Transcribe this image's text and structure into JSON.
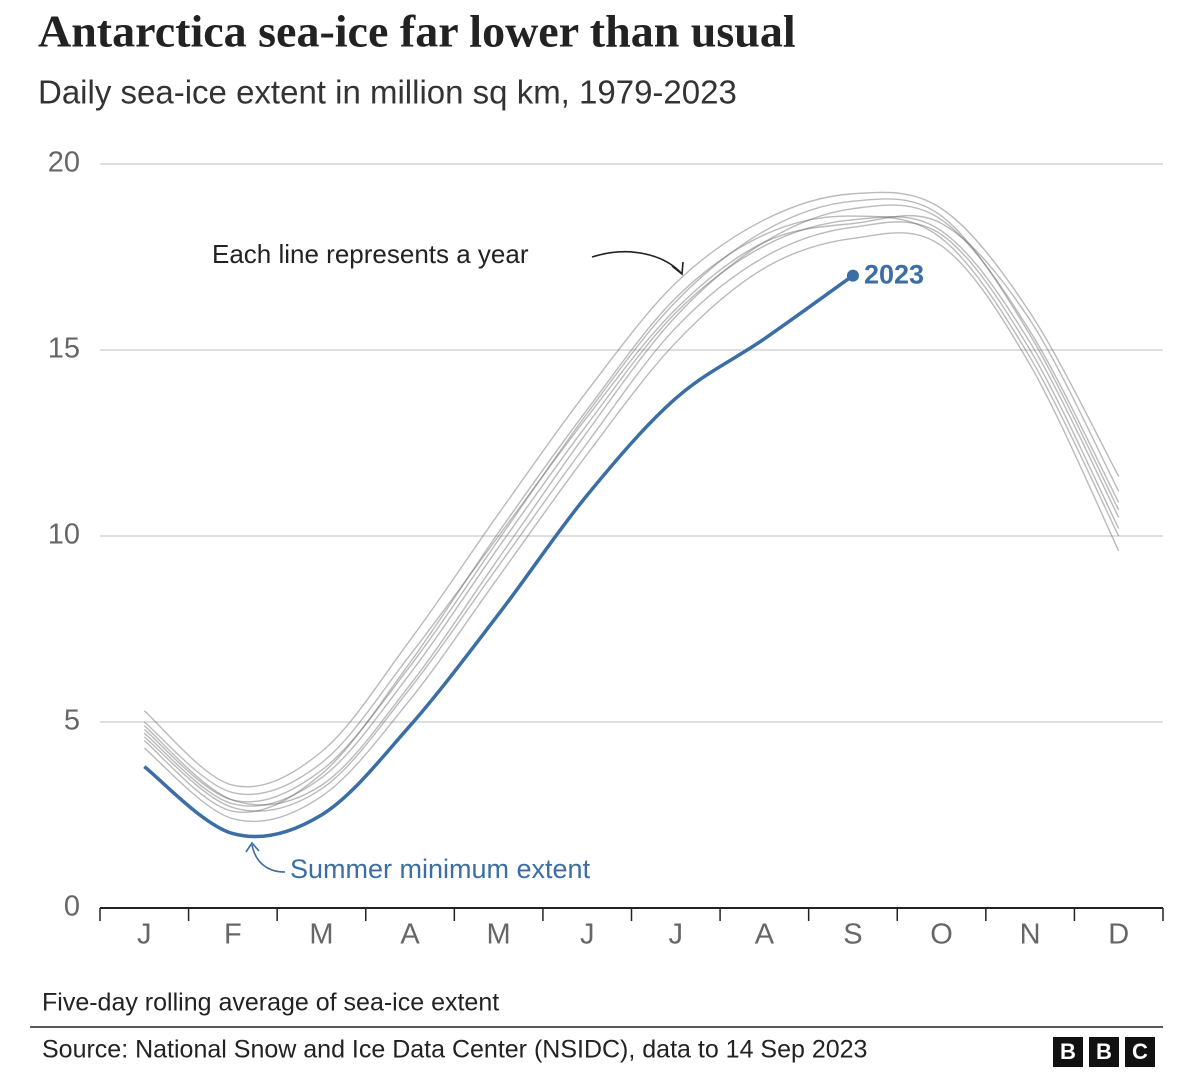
{
  "chart_data": {
    "type": "line",
    "title": "Antarctica sea-ice far lower than usual",
    "subtitle": "Daily sea-ice extent in million sq km, 1979-2023",
    "categories": [
      "J",
      "F",
      "M",
      "A",
      "M",
      "J",
      "J",
      "A",
      "S",
      "O",
      "N",
      "D"
    ],
    "ylim": [
      0,
      20
    ],
    "yticks": [
      0,
      5,
      10,
      15,
      20
    ],
    "grid": true,
    "series": [
      {
        "color": "#666666",
        "values": [
          4.7,
          2.8,
          3.5,
          6.3,
          9.7,
          13.0,
          16.0,
          17.8,
          18.5,
          18.2,
          15.2,
          10.5
        ]
      },
      {
        "color": "#666666",
        "values": [
          5.3,
          3.3,
          4.2,
          7.2,
          10.6,
          13.9,
          16.8,
          18.5,
          19.2,
          18.8,
          16.0,
          11.6
        ]
      },
      {
        "color": "#666666",
        "values": [
          4.3,
          2.4,
          3.0,
          5.6,
          8.9,
          12.2,
          15.2,
          17.2,
          18.0,
          17.8,
          14.6,
          9.6
        ]
      },
      {
        "color": "#666666",
        "values": [
          4.9,
          2.9,
          3.3,
          6.0,
          9.4,
          12.8,
          15.9,
          17.9,
          18.8,
          18.5,
          15.5,
          10.9
        ]
      },
      {
        "color": "#666666",
        "values": [
          4.5,
          2.6,
          3.6,
          6.6,
          10.1,
          13.4,
          16.4,
          18.1,
          18.6,
          18.0,
          14.8,
          10.0
        ]
      },
      {
        "color": "#666666",
        "values": [
          5.0,
          3.1,
          3.9,
          6.8,
          10.0,
          13.2,
          16.1,
          17.9,
          18.4,
          18.4,
          15.8,
          11.2
        ]
      },
      {
        "color": "#666666",
        "values": [
          4.6,
          2.7,
          3.2,
          5.9,
          9.2,
          12.5,
          15.6,
          17.5,
          18.3,
          18.1,
          15.0,
          10.2
        ]
      },
      {
        "color": "#666666",
        "values": [
          4.8,
          2.9,
          3.7,
          6.5,
          9.9,
          13.3,
          16.3,
          18.2,
          19.0,
          18.6,
          15.4,
          10.7
        ]
      },
      {
        "name": "2023",
        "color": "#3a6ea5",
        "values": [
          3.8,
          2.0,
          2.5,
          4.9,
          7.9,
          11.1,
          13.7,
          15.3,
          17.0,
          null,
          null,
          null
        ]
      }
    ],
    "annotations": [
      "Each line represents a year",
      "Summer minimum extent"
    ],
    "note": "Five-day rolling average of sea-ice extent",
    "source": "Source: National Snow and Ice Data Center (NSIDC), data to 14 Sep 2023",
    "logo": [
      "B",
      "B",
      "C"
    ]
  }
}
